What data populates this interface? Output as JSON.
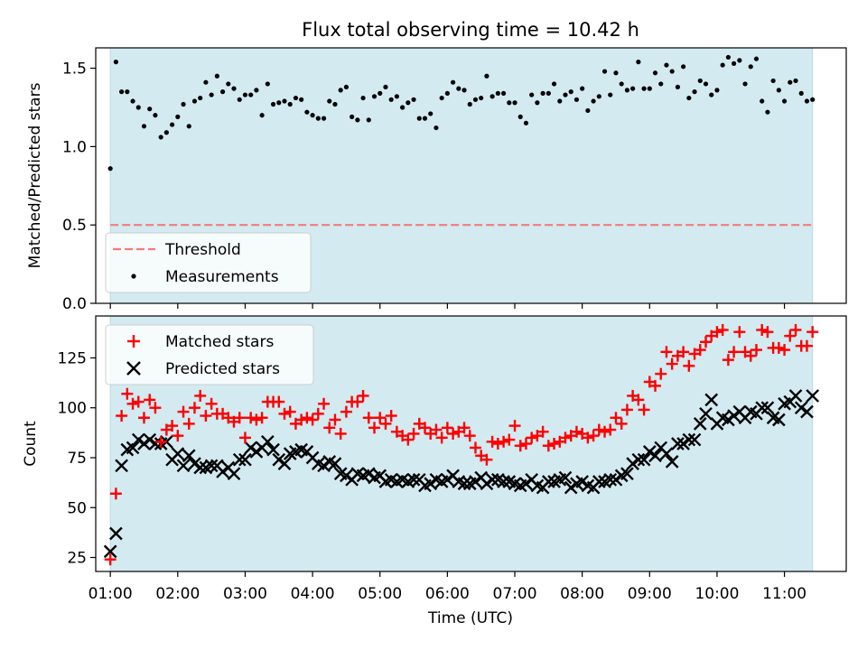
{
  "figure": {
    "title": "Flux total observing time = 10.42 h"
  },
  "chart_data": [
    {
      "type": "scatter",
      "panel": "top",
      "title": "Flux total observing time = 10.42 h",
      "xlabel": "",
      "ylabel": "Matched/Predicted stars",
      "xlim": [
        "00:47",
        "11:55"
      ],
      "ylim": [
        0.0,
        1.63
      ],
      "yticks": [
        0.0,
        0.5,
        1.0,
        1.5
      ],
      "ytick_labels": [
        "0.0",
        "0.5",
        "1.0",
        "1.5"
      ],
      "shaded_interval": {
        "x0": "01:00",
        "x1": "11:25",
        "color": "#d3eaf1"
      },
      "threshold": {
        "name": "Threshold",
        "y": 0.5,
        "color": "#f47a7a"
      },
      "legend": {
        "placement": "lower-left",
        "entries": [
          "Threshold",
          "Measurements"
        ]
      },
      "series": [
        {
          "name": "Measurements",
          "color": "#000000",
          "x": [
            "01:00",
            "01:05",
            "01:10",
            "01:15",
            "01:20",
            "01:25",
            "01:30",
            "01:35",
            "01:40",
            "01:45",
            "01:50",
            "01:55",
            "02:00",
            "02:05",
            "02:10",
            "02:15",
            "02:20",
            "02:25",
            "02:30",
            "02:35",
            "02:40",
            "02:45",
            "02:50",
            "02:55",
            "03:00",
            "03:05",
            "03:10",
            "03:15",
            "03:20",
            "03:25",
            "03:30",
            "03:35",
            "03:40",
            "03:45",
            "03:50",
            "03:55",
            "04:00",
            "04:05",
            "04:10",
            "04:15",
            "04:20",
            "04:25",
            "04:30",
            "04:35",
            "04:40",
            "04:45",
            "04:50",
            "04:55",
            "05:00",
            "05:05",
            "05:10",
            "05:15",
            "05:20",
            "05:25",
            "05:30",
            "05:35",
            "05:40",
            "05:45",
            "05:50",
            "05:55",
            "06:00",
            "06:05",
            "06:10",
            "06:15",
            "06:20",
            "06:25",
            "06:30",
            "06:35",
            "06:40",
            "06:45",
            "06:50",
            "06:55",
            "07:00",
            "07:05",
            "07:10",
            "07:15",
            "07:20",
            "07:25",
            "07:30",
            "07:35",
            "07:40",
            "07:45",
            "07:50",
            "07:55",
            "08:00",
            "08:05",
            "08:10",
            "08:15",
            "08:20",
            "08:25",
            "08:30",
            "08:35",
            "08:40",
            "08:45",
            "08:50",
            "08:55",
            "09:00",
            "09:05",
            "09:10",
            "09:15",
            "09:20",
            "09:25",
            "09:30",
            "09:35",
            "09:40",
            "09:45",
            "09:50",
            "09:55",
            "10:00",
            "10:05",
            "10:10",
            "10:15",
            "10:20",
            "10:25",
            "10:30",
            "10:35",
            "10:40",
            "10:45",
            "10:50",
            "10:55",
            "11:00",
            "11:05",
            "11:10",
            "11:15",
            "11:20",
            "11:25"
          ],
          "y": [
            0.86,
            1.54,
            1.35,
            1.35,
            1.29,
            1.25,
            1.13,
            1.24,
            1.2,
            1.06,
            1.09,
            1.14,
            1.19,
            1.27,
            1.13,
            1.29,
            1.31,
            1.41,
            1.33,
            1.45,
            1.35,
            1.4,
            1.37,
            1.3,
            1.33,
            1.33,
            1.36,
            1.2,
            1.4,
            1.27,
            1.28,
            1.29,
            1.27,
            1.31,
            1.3,
            1.22,
            1.2,
            1.18,
            1.18,
            1.29,
            1.27,
            1.36,
            1.38,
            1.19,
            1.17,
            1.31,
            1.17,
            1.32,
            1.34,
            1.38,
            1.3,
            1.32,
            1.25,
            1.28,
            1.3,
            1.18,
            1.18,
            1.21,
            1.12,
            1.31,
            1.34,
            1.41,
            1.37,
            1.36,
            1.27,
            1.3,
            1.31,
            1.45,
            1.32,
            1.34,
            1.34,
            1.28,
            1.28,
            1.19,
            1.15,
            1.33,
            1.28,
            1.34,
            1.34,
            1.4,
            1.29,
            1.33,
            1.35,
            1.3,
            1.37,
            1.23,
            1.29,
            1.32,
            1.48,
            1.33,
            1.47,
            1.4,
            1.36,
            1.37,
            1.54,
            1.37,
            1.37,
            1.47,
            1.4,
            1.52,
            1.48,
            1.38,
            1.51,
            1.31,
            1.35,
            1.42,
            1.4,
            1.33,
            1.36,
            1.52,
            1.57,
            1.53,
            1.55,
            1.4,
            1.51,
            1.56,
            1.29,
            1.22,
            1.42,
            1.36,
            1.29,
            1.41,
            1.42,
            1.34,
            1.29,
            1.3
          ]
        }
      ]
    },
    {
      "type": "scatter",
      "panel": "bottom",
      "title": "",
      "xlabel": "Time (UTC)",
      "ylabel": "Count",
      "xlim": [
        "00:47",
        "11:55"
      ],
      "ylim": [
        18,
        146
      ],
      "xticks": [
        "01:00",
        "02:00",
        "03:00",
        "04:00",
        "05:00",
        "06:00",
        "07:00",
        "08:00",
        "09:00",
        "10:00",
        "11:00"
      ],
      "yticks": [
        25,
        50,
        75,
        100,
        125
      ],
      "ytick_labels": [
        "25",
        "50",
        "75",
        "100",
        "125"
      ],
      "shaded_interval": {
        "x0": "01:00",
        "x1": "11:25",
        "color": "#d3eaf1"
      },
      "legend": {
        "placement": "upper-left",
        "entries": [
          "Matched stars",
          "Predicted stars"
        ]
      },
      "series": [
        {
          "name": "Matched stars",
          "marker": "plus",
          "color": "#ff0000",
          "x": [
            "01:00",
            "01:05",
            "01:10",
            "01:15",
            "01:20",
            "01:25",
            "01:30",
            "01:35",
            "01:40",
            "01:45",
            "01:50",
            "01:55",
            "02:00",
            "02:05",
            "02:10",
            "02:15",
            "02:20",
            "02:25",
            "02:30",
            "02:35",
            "02:40",
            "02:45",
            "02:50",
            "02:55",
            "03:00",
            "03:05",
            "03:10",
            "03:15",
            "03:20",
            "03:25",
            "03:30",
            "03:35",
            "03:40",
            "03:45",
            "03:50",
            "03:55",
            "04:00",
            "04:05",
            "04:10",
            "04:15",
            "04:20",
            "04:25",
            "04:30",
            "04:35",
            "04:40",
            "04:45",
            "04:50",
            "04:55",
            "05:00",
            "05:05",
            "05:10",
            "05:15",
            "05:20",
            "05:25",
            "05:30",
            "05:35",
            "05:40",
            "05:45",
            "05:50",
            "05:55",
            "06:00",
            "06:05",
            "06:10",
            "06:15",
            "06:20",
            "06:25",
            "06:30",
            "06:35",
            "06:40",
            "06:45",
            "06:50",
            "06:55",
            "07:00",
            "07:05",
            "07:10",
            "07:15",
            "07:20",
            "07:25",
            "07:30",
            "07:35",
            "07:40",
            "07:45",
            "07:50",
            "07:55",
            "08:00",
            "08:05",
            "08:10",
            "08:15",
            "08:20",
            "08:25",
            "08:30",
            "08:35",
            "08:40",
            "08:45",
            "08:50",
            "08:55",
            "09:00",
            "09:05",
            "09:10",
            "09:15",
            "09:20",
            "09:25",
            "09:30",
            "09:35",
            "09:40",
            "09:45",
            "09:50",
            "09:55",
            "10:00",
            "10:05",
            "10:10",
            "10:15",
            "10:20",
            "10:25",
            "10:30",
            "10:35",
            "10:40",
            "10:45",
            "10:50",
            "10:55",
            "11:00",
            "11:05",
            "11:10",
            "11:15",
            "11:20",
            "11:25"
          ],
          "y": [
            24,
            57,
            96,
            107,
            102,
            103,
            95,
            104,
            100,
            83,
            89,
            91,
            86,
            98,
            92,
            100,
            106,
            96,
            102,
            97,
            97,
            95,
            93,
            95,
            85,
            95,
            94,
            95,
            103,
            103,
            103,
            97,
            98,
            92,
            94,
            95,
            94,
            97,
            102,
            90,
            94,
            87,
            98,
            103,
            103,
            106,
            95,
            90,
            95,
            92,
            96,
            88,
            86,
            84,
            87,
            92,
            90,
            87,
            89,
            85,
            90,
            87,
            88,
            90,
            86,
            80,
            76,
            74,
            83,
            82,
            83,
            84,
            91,
            81,
            82,
            85,
            86,
            88,
            81,
            82,
            83,
            85,
            86,
            88,
            87,
            85,
            86,
            89,
            88,
            89,
            95,
            92,
            99,
            106,
            104,
            99,
            113,
            111,
            117,
            128,
            122,
            126,
            128,
            121,
            127,
            129,
            133,
            136,
            138,
            139,
            124,
            128,
            138,
            128,
            126,
            129,
            139,
            138,
            130,
            130,
            129,
            136,
            139,
            131,
            131,
            138
          ]
        },
        {
          "name": "Predicted stars",
          "marker": "x",
          "color": "#000000",
          "x": [
            "01:00",
            "01:05",
            "01:10",
            "01:15",
            "01:20",
            "01:25",
            "01:30",
            "01:35",
            "01:40",
            "01:45",
            "01:50",
            "01:55",
            "02:00",
            "02:05",
            "02:10",
            "02:15",
            "02:20",
            "02:25",
            "02:30",
            "02:35",
            "02:40",
            "02:45",
            "02:50",
            "02:55",
            "03:00",
            "03:05",
            "03:10",
            "03:15",
            "03:20",
            "03:25",
            "03:30",
            "03:35",
            "03:40",
            "03:45",
            "03:50",
            "03:55",
            "04:00",
            "04:05",
            "04:10",
            "04:15",
            "04:20",
            "04:25",
            "04:30",
            "04:35",
            "04:40",
            "04:45",
            "04:50",
            "04:55",
            "05:00",
            "05:05",
            "05:10",
            "05:15",
            "05:20",
            "05:25",
            "05:30",
            "05:35",
            "05:40",
            "05:45",
            "05:50",
            "05:55",
            "06:00",
            "06:05",
            "06:10",
            "06:15",
            "06:20",
            "06:25",
            "06:30",
            "06:35",
            "06:40",
            "06:45",
            "06:50",
            "06:55",
            "07:00",
            "07:05",
            "07:10",
            "07:15",
            "07:20",
            "07:25",
            "07:30",
            "07:35",
            "07:40",
            "07:45",
            "07:50",
            "07:55",
            "08:00",
            "08:05",
            "08:10",
            "08:15",
            "08:20",
            "08:25",
            "08:30",
            "08:35",
            "08:40",
            "08:45",
            "08:50",
            "08:55",
            "09:00",
            "09:05",
            "09:10",
            "09:15",
            "09:20",
            "09:25",
            "09:30",
            "09:35",
            "09:40",
            "09:45",
            "09:50",
            "09:55",
            "10:00",
            "10:05",
            "10:10",
            "10:15",
            "10:20",
            "10:25",
            "10:30",
            "10:35",
            "10:40",
            "10:45",
            "10:50",
            "10:55",
            "11:00",
            "11:05",
            "11:10",
            "11:15",
            "11:20",
            "11:25"
          ],
          "y": [
            28,
            37,
            71,
            79,
            80,
            84,
            82,
            84,
            82,
            82,
            83,
            74,
            77,
            71,
            76,
            72,
            70,
            70,
            71,
            71,
            68,
            70,
            67,
            74,
            74,
            80,
            78,
            80,
            83,
            79,
            74,
            72,
            77,
            78,
            79,
            78,
            75,
            72,
            71,
            73,
            72,
            67,
            66,
            64,
            67,
            66,
            67,
            65,
            66,
            63,
            64,
            63,
            64,
            63,
            64,
            64,
            61,
            62,
            64,
            63,
            64,
            66,
            63,
            62,
            62,
            63,
            65,
            62,
            64,
            64,
            63,
            63,
            62,
            61,
            62,
            64,
            61,
            60,
            63,
            63,
            64,
            65,
            60,
            62,
            63,
            61,
            60,
            63,
            63,
            64,
            64,
            66,
            67,
            72,
            74,
            74,
            78,
            76,
            80,
            77,
            73,
            82,
            82,
            84,
            84,
            92,
            97,
            104,
            92,
            95,
            94,
            96,
            98,
            95,
            98,
            97,
            100,
            100,
            95,
            94,
            102,
            103,
            106,
            100,
            98,
            106
          ]
        }
      ]
    }
  ]
}
